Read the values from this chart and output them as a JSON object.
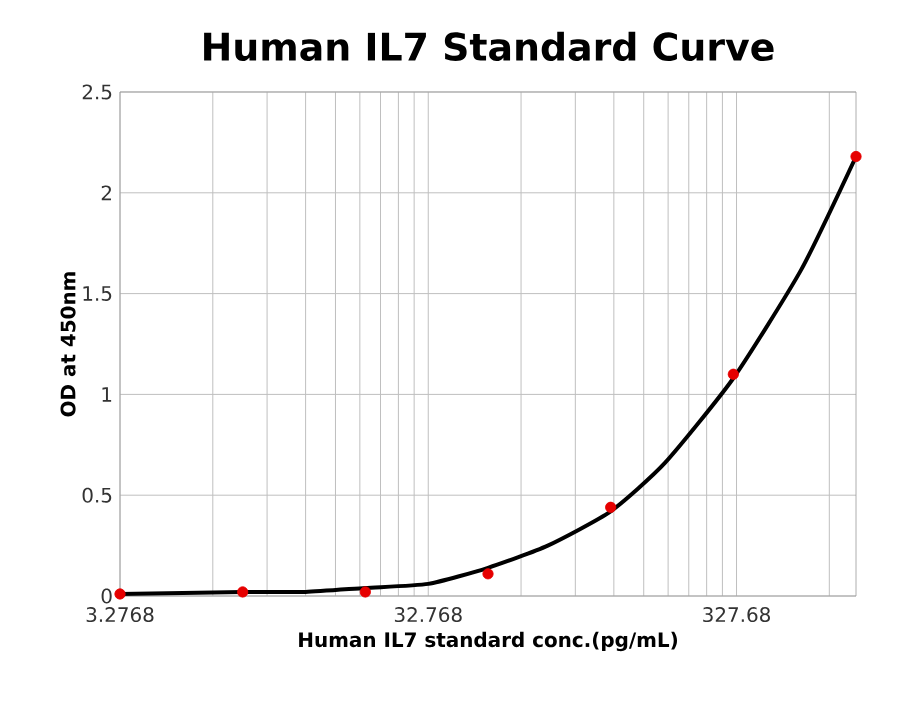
{
  "chart_data": {
    "type": "scatter",
    "title": "Human IL7 Standard Curve",
    "xlabel": "Human  IL7 standard conc.(pg/mL)",
    "ylabel": "OD at 450nm",
    "log": "x",
    "grid": true,
    "xlim": [
      3.2768,
      800
    ],
    "xticks": [
      3.2768,
      32.768,
      327.68
    ],
    "ylim": [
      0,
      2.5
    ],
    "yticks": [
      0,
      0.5,
      1,
      1.5,
      2,
      2.5
    ],
    "series": [
      {
        "type": "line",
        "color": "#000000",
        "marker": "none",
        "line_style": "solid",
        "x": [
          3.2768,
          8.192,
          13.1,
          20.48,
          32.768,
          51.2,
          80,
          128,
          192,
          320,
          532,
          800
        ],
        "values": [
          0.01,
          0.02,
          0.02,
          0.04,
          0.06,
          0.14,
          0.25,
          0.42,
          0.66,
          1.08,
          1.62,
          2.18
        ]
      },
      {
        "color": "#e60000",
        "marker": "circle",
        "x": [
          3.2768,
          8.192,
          20.48,
          51.2,
          128,
          320,
          800
        ],
        "values": [
          0.01,
          0.02,
          0.02,
          0.11,
          0.44,
          1.1,
          2.18
        ]
      }
    ]
  }
}
